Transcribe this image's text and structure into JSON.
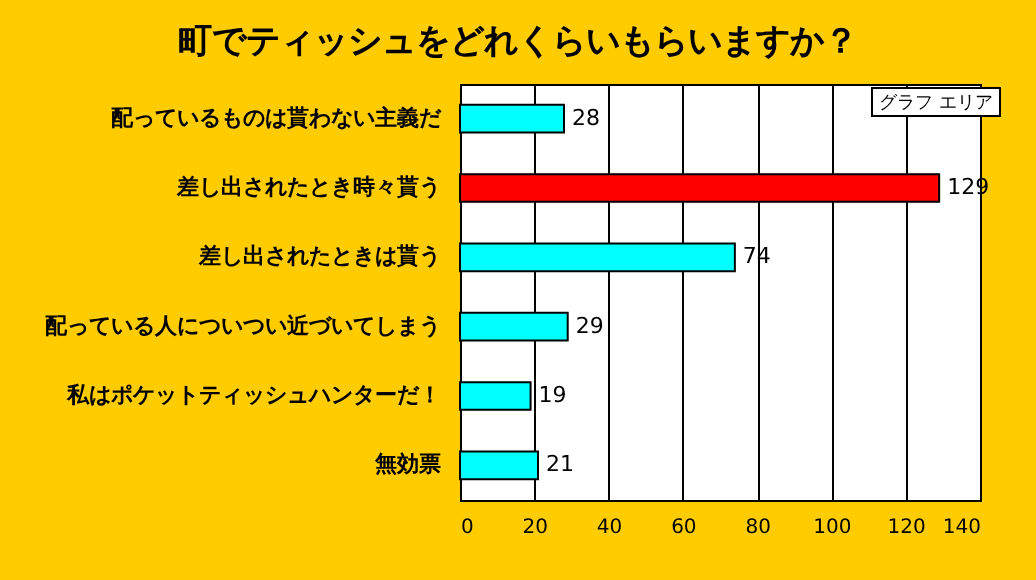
{
  "chart_data": {
    "type": "bar",
    "orientation": "horizontal",
    "title": "町でティッシュをどれくらいもらいますか？",
    "categories": [
      "配っているものは貰わない主義だ",
      "差し出されたとき時々貰う",
      "差し出されたときは貰う",
      "配っている人についつい近づいてしまう",
      "私はポケットティッシュハンターだ！",
      "無効票"
    ],
    "values": [
      28,
      129,
      74,
      29,
      19,
      21
    ],
    "colors": [
      "#00ffff",
      "#ff0000",
      "#00ffff",
      "#00ffff",
      "#00ffff",
      "#00ffff"
    ],
    "xlim": [
      0,
      140
    ],
    "xticks": [
      0,
      20,
      40,
      60,
      80,
      100,
      120,
      140
    ],
    "grid": "x",
    "data_labels": true,
    "annotations": [
      "グラフ エリア"
    ]
  }
}
